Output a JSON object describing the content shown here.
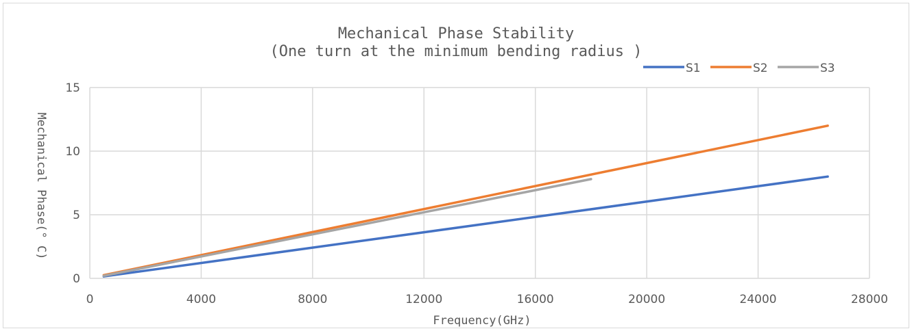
{
  "chart_data": {
    "type": "line",
    "title_line1": "Mechanical Phase Stability",
    "title_line2": "(One turn at the minimum bending radius )",
    "xlabel": "Frequency(GHz)",
    "ylabel": "Mechanical Phase(° C)",
    "xlim": [
      0,
      28000
    ],
    "ylim": [
      0,
      15
    ],
    "xticks": [
      0,
      4000,
      8000,
      12000,
      16000,
      20000,
      24000,
      28000
    ],
    "yticks": [
      0,
      5,
      10,
      15
    ],
    "grid": true,
    "legend_position": "top-right",
    "series": [
      {
        "name": "S1",
        "color": "#4472c4",
        "x": [
          500,
          26500
        ],
        "y": [
          0.15,
          8.0
        ]
      },
      {
        "name": "S2",
        "color": "#ed7d31",
        "x": [
          500,
          26500
        ],
        "y": [
          0.25,
          12.0
        ]
      },
      {
        "name": "S3",
        "color": "#a5a5a5",
        "x": [
          500,
          18000
        ],
        "y": [
          0.2,
          7.8
        ]
      }
    ]
  }
}
